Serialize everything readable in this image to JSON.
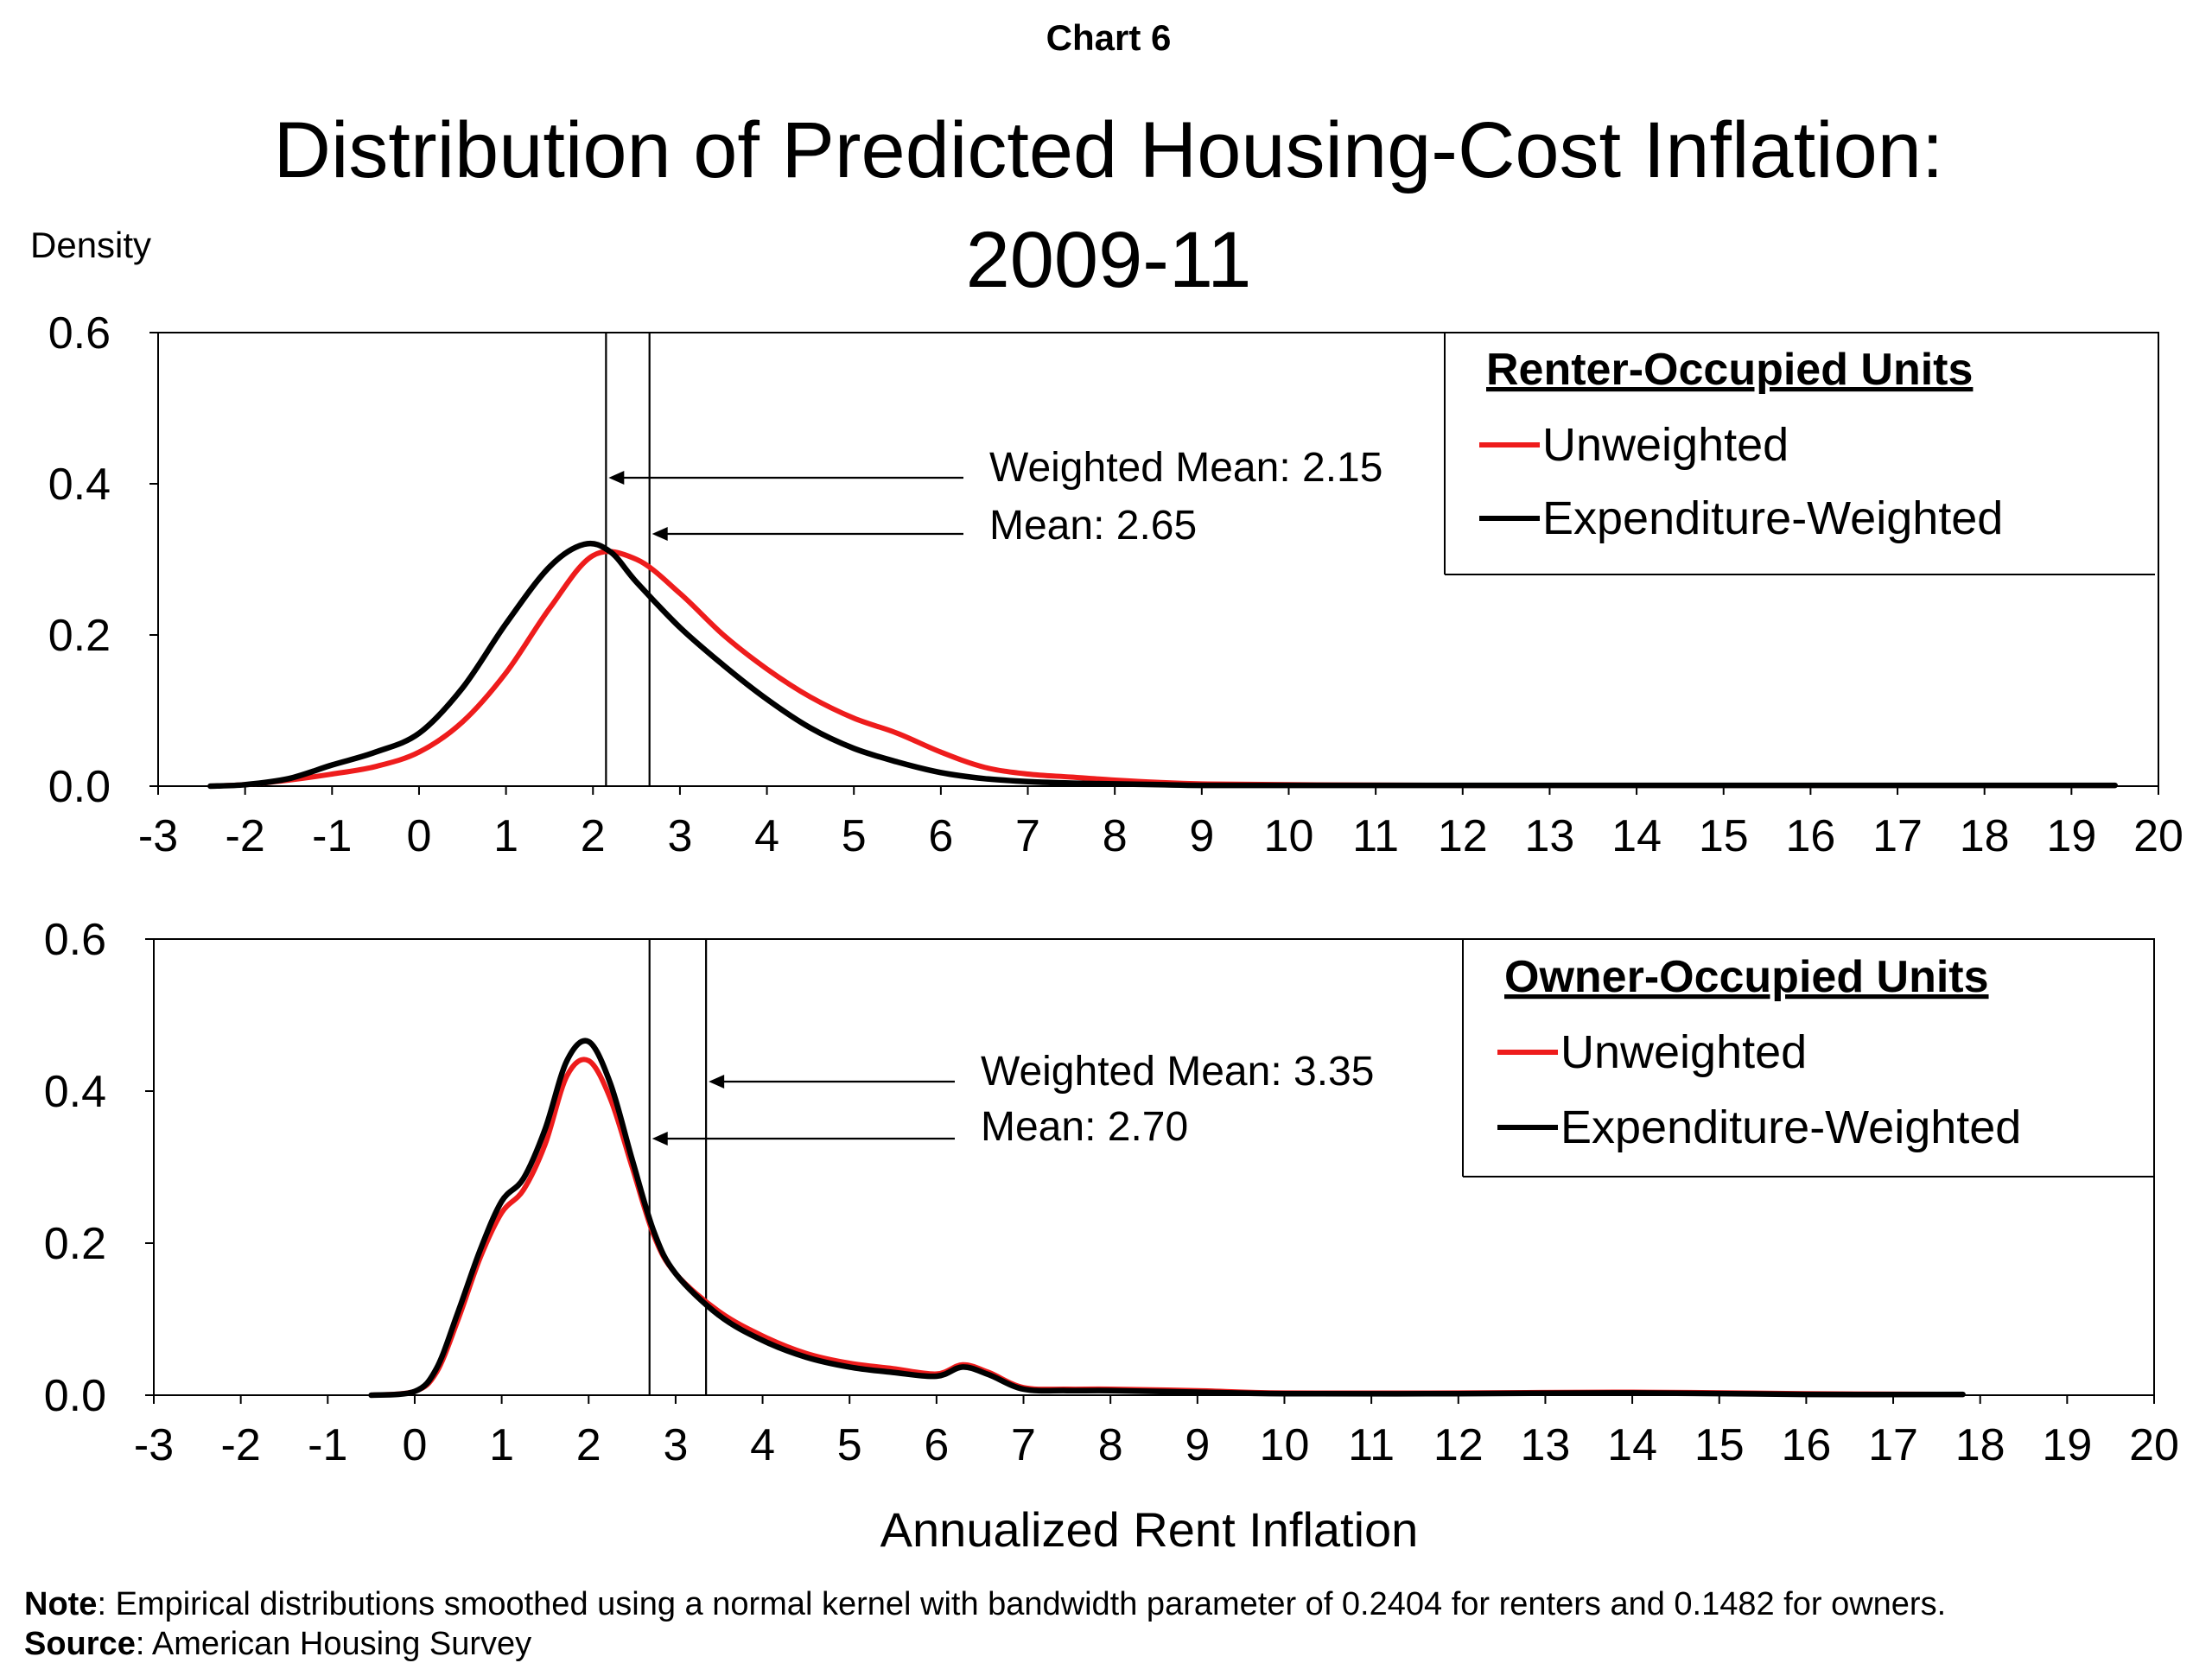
{
  "pre_title": "Chart 6",
  "title_line1": "Distribution of Predicted Housing-Cost Inflation:",
  "title_line2": "2009-11",
  "ylabel": "Density",
  "xlabel": "Annualized Rent Inflation",
  "note_label": "Note",
  "note_text": ": Empirical distributions smoothed using a normal kernel with bandwidth parameter of  0.2404 for renters and 0.1482 for owners.",
  "source_label": "Source",
  "source_text": ": American Housing Survey",
  "colors": {
    "unweighted": "#ee1c1c",
    "weighted": "#000000"
  },
  "chart_data": [
    {
      "type": "line",
      "legend_title": "Renter-Occupied Units",
      "legend_placement": "top-right",
      "xlim": [
        -3,
        20
      ],
      "ylim": [
        0,
        0.6
      ],
      "xticks": [
        "-3",
        "-2",
        "-1",
        "0",
        "1",
        "2",
        "3",
        "4",
        "5",
        "6",
        "7",
        "8",
        "9",
        "10",
        "11",
        "12",
        "13",
        "14",
        "15",
        "16",
        "17",
        "18",
        "19",
        "20"
      ],
      "yticks": [
        "0.0",
        "0.2",
        "0.4",
        "0.6"
      ],
      "vlines": [
        2.15,
        2.65
      ],
      "annotations": [
        {
          "text": "Weighted Mean: 2.15",
          "x": 2.15
        },
        {
          "text": "Mean: 2.65",
          "x": 2.65
        }
      ],
      "series": [
        {
          "name": "Unweighted",
          "color": "#ee1c1c",
          "x": [
            -2.4,
            -2,
            -1.5,
            -1,
            -0.5,
            0,
            0.5,
            1,
            1.5,
            2,
            2.5,
            3,
            3.5,
            4,
            4.5,
            5,
            5.5,
            6,
            6.5,
            7,
            7.5,
            8,
            8.5,
            9,
            10,
            12,
            14,
            16,
            18,
            19.5
          ],
          "y": [
            0,
            0.002,
            0.008,
            0.016,
            0.026,
            0.045,
            0.085,
            0.15,
            0.235,
            0.305,
            0.3,
            0.255,
            0.2,
            0.155,
            0.118,
            0.09,
            0.07,
            0.045,
            0.025,
            0.016,
            0.012,
            0.008,
            0.005,
            0.003,
            0.002,
            0.001,
            0.001,
            0.001,
            0.001,
            0.001
          ]
        },
        {
          "name": "Expenditure-Weighted",
          "color": "#000000",
          "x": [
            -2.4,
            -2,
            -1.5,
            -1,
            -0.5,
            0,
            0.5,
            1,
            1.5,
            1.9,
            2.2,
            2.5,
            3,
            3.5,
            4,
            4.5,
            5,
            5.5,
            6,
            6.5,
            7,
            7.5,
            8,
            8.5,
            9,
            10,
            12,
            14,
            16,
            18,
            19.5
          ],
          "y": [
            0,
            0.002,
            0.01,
            0.028,
            0.045,
            0.07,
            0.13,
            0.215,
            0.29,
            0.32,
            0.31,
            0.27,
            0.21,
            0.16,
            0.115,
            0.077,
            0.05,
            0.032,
            0.018,
            0.01,
            0.006,
            0.004,
            0.003,
            0.002,
            0.001,
            0.001,
            0.001,
            0.001,
            0.001,
            0.001,
            0.001
          ]
        }
      ]
    },
    {
      "type": "line",
      "legend_title": "Owner-Occupied Units",
      "legend_placement": "top-right",
      "xlim": [
        -3,
        20
      ],
      "ylim": [
        0,
        0.6
      ],
      "xticks": [
        "-3",
        "-2",
        "-1",
        "0",
        "1",
        "2",
        "3",
        "4",
        "5",
        "6",
        "7",
        "8",
        "9",
        "10",
        "11",
        "12",
        "13",
        "14",
        "15",
        "16",
        "17",
        "18",
        "19",
        "20"
      ],
      "yticks": [
        "0.0",
        "0.2",
        "0.4",
        "0.6"
      ],
      "vlines": [
        2.7,
        3.35
      ],
      "annotations": [
        {
          "text": "Weighted Mean: 3.35",
          "x": 3.35
        },
        {
          "text": "Mean: 2.70",
          "x": 2.7
        }
      ],
      "series": [
        {
          "name": "Unweighted",
          "color": "#ee1c1c",
          "x": [
            -0.5,
            0,
            0.25,
            0.5,
            0.75,
            1,
            1.25,
            1.5,
            1.75,
            2,
            2.25,
            2.5,
            2.75,
            3,
            3.5,
            4,
            4.5,
            5,
            5.5,
            6,
            6.3,
            6.6,
            7,
            7.5,
            8,
            9,
            10,
            12,
            14,
            16,
            17.8
          ],
          "y": [
            0,
            0.005,
            0.03,
            0.1,
            0.18,
            0.24,
            0.27,
            0.33,
            0.42,
            0.44,
            0.39,
            0.3,
            0.21,
            0.16,
            0.11,
            0.078,
            0.055,
            0.042,
            0.035,
            0.028,
            0.04,
            0.03,
            0.01,
            0.008,
            0.008,
            0.006,
            0.003,
            0.003,
            0.004,
            0.002,
            0.001
          ]
        },
        {
          "name": "Expenditure-Weighted",
          "color": "#000000",
          "x": [
            -0.5,
            0,
            0.25,
            0.5,
            0.75,
            1,
            1.25,
            1.5,
            1.75,
            2,
            2.25,
            2.5,
            2.75,
            3,
            3.5,
            4,
            4.5,
            5,
            5.5,
            6,
            6.3,
            6.6,
            7,
            7.5,
            8,
            9,
            10,
            12,
            14,
            16,
            17.8
          ],
          "y": [
            0,
            0.005,
            0.035,
            0.11,
            0.19,
            0.255,
            0.285,
            0.35,
            0.44,
            0.465,
            0.41,
            0.31,
            0.215,
            0.16,
            0.105,
            0.072,
            0.05,
            0.037,
            0.03,
            0.025,
            0.037,
            0.027,
            0.008,
            0.006,
            0.006,
            0.004,
            0.002,
            0.002,
            0.003,
            0.001,
            0.001
          ]
        }
      ]
    }
  ]
}
